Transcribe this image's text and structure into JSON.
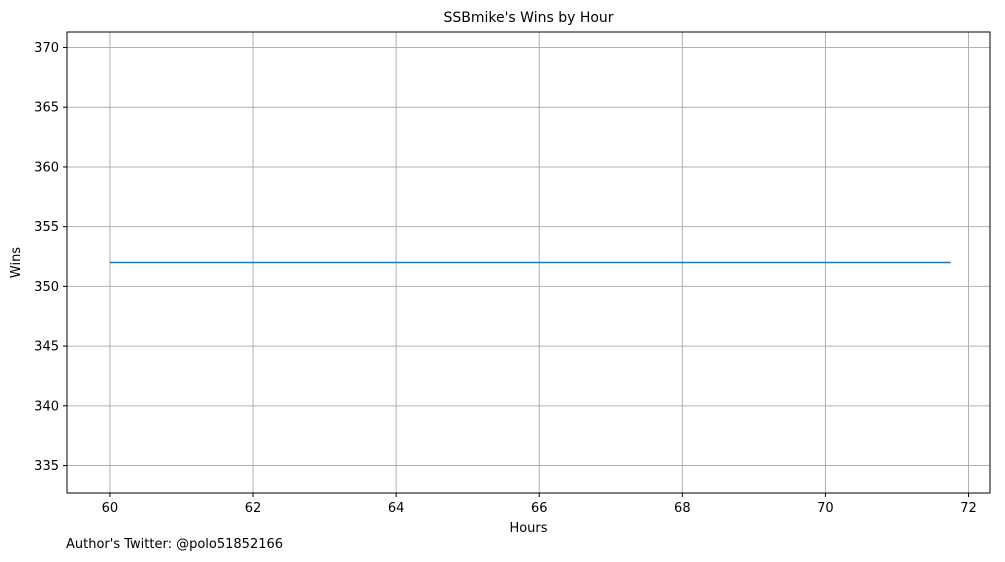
{
  "chart_data": {
    "type": "line",
    "title": "SSBmike's Wins by Hour",
    "xlabel": "Hours",
    "ylabel": "Wins",
    "xlim": [
      59.4,
      72.3
    ],
    "ylim": [
      332.7,
      371.3
    ],
    "x_ticks": [
      60,
      62,
      64,
      66,
      68,
      70,
      72
    ],
    "y_ticks": [
      335,
      340,
      345,
      350,
      355,
      360,
      365,
      370
    ],
    "grid": true,
    "legend": "none",
    "series": [
      {
        "x": [
          60,
          71.75
        ],
        "y": [
          352,
          352
        ],
        "color": "#1f77b4"
      }
    ]
  },
  "footer": {
    "text": "Author's Twitter: @polo51852166"
  },
  "colors": {
    "line": "#1f77b4",
    "grid": "#b0b0b0",
    "axes": "#000000"
  }
}
